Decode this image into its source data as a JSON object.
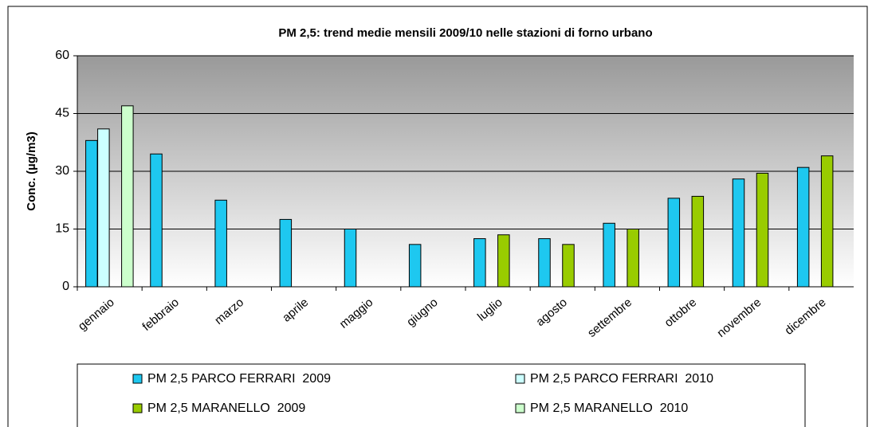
{
  "chart_data": {
    "type": "bar",
    "title": "PM 2,5: trend medie mensili 2009/10 nelle stazioni di forno urbano",
    "y_label": "Conc. (µg/m3)",
    "categories": [
      "gennaio",
      "febbraio",
      "marzo",
      "aprile",
      "maggio",
      "giugno",
      "luglio",
      "agosto",
      "settembre",
      "ottobre",
      "novembre",
      "dicembre"
    ],
    "series": [
      {
        "name": "PM 2,5 PARCO FERRARI  2009",
        "color": "#1ec8f0",
        "values": [
          38,
          34.5,
          22.5,
          17.5,
          15,
          11,
          12.5,
          12.5,
          16.5,
          23,
          28,
          31
        ]
      },
      {
        "name": "PM 2,5 PARCO FERRARI  2010",
        "color": "#ccffff",
        "values": [
          41,
          null,
          null,
          null,
          null,
          null,
          null,
          null,
          null,
          null,
          null,
          null
        ]
      },
      {
        "name": "PM 2,5 MARANELLO  2009",
        "color": "#99cc00",
        "values": [
          null,
          null,
          null,
          null,
          null,
          null,
          13.5,
          11,
          15,
          23.5,
          29.5,
          34
        ]
      },
      {
        "name": "PM 2,5 MARANELLO  2010",
        "color": "#ccffcc",
        "values": [
          47,
          null,
          null,
          null,
          null,
          null,
          null,
          null,
          null,
          null,
          null,
          null
        ]
      }
    ],
    "ylim": [
      0,
      60
    ],
    "yticks": [
      0,
      15,
      30,
      45,
      60
    ],
    "grid": true,
    "legend": "bottom"
  }
}
